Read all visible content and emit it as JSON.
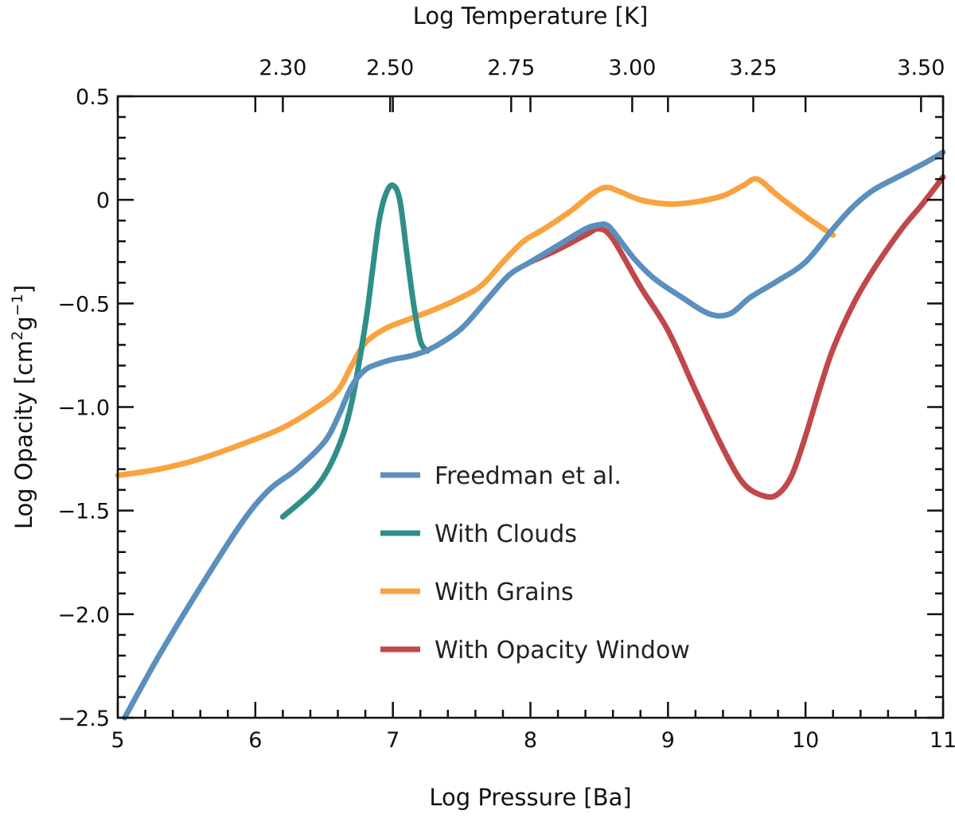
{
  "chart_data": {
    "type": "line",
    "xlabel": "Log Pressure [Ba]",
    "ylabel": "Log Opacity [cm²g⁻¹]",
    "ylabel_parts": {
      "main": "Log Opacity [cm",
      "sup1": "2",
      "mid": "g",
      "sup2": "−1",
      "end": "]"
    },
    "top_xlabel": "Log Temperature [K]",
    "xlim": [
      5,
      11
    ],
    "ylim": [
      -2.5,
      0.5
    ],
    "x_ticks": [
      5,
      6,
      7,
      8,
      9,
      10,
      11
    ],
    "x_tick_labels": [
      "5",
      "6",
      "7",
      "8",
      "9",
      "10",
      "11"
    ],
    "y_ticks": [
      0.5,
      0,
      -0.5,
      -1.0,
      -1.5,
      -2.0,
      -2.5
    ],
    "y_tick_labels": [
      "0.5",
      "0",
      "−0.5",
      "−1.0",
      "−1.5",
      "−2.0",
      "−2.5"
    ],
    "top_ticks": [
      {
        "pressure": 6.2,
        "label": "2.30"
      },
      {
        "pressure": 6.98,
        "label": "2.50"
      },
      {
        "pressure": 7.86,
        "label": "2.75"
      },
      {
        "pressure": 8.74,
        "label": "3.00"
      },
      {
        "pressure": 9.62,
        "label": "3.25"
      },
      {
        "pressure": 10.84,
        "label": "3.50"
      }
    ],
    "grid": false,
    "legend_position": "center",
    "series": [
      {
        "name": "With Grains",
        "color": "#f9a23e",
        "x": [
          5.0,
          5.3,
          5.6,
          5.9,
          6.2,
          6.45,
          6.6,
          6.7,
          6.8,
          6.95,
          7.1,
          7.3,
          7.5,
          7.65,
          7.8,
          7.95,
          8.1,
          8.3,
          8.45,
          8.55,
          8.65,
          8.8,
          9.0,
          9.2,
          9.4,
          9.55,
          9.65,
          9.8,
          10.0,
          10.2
        ],
        "y": [
          -1.33,
          -1.3,
          -1.25,
          -1.18,
          -1.1,
          -1.0,
          -0.92,
          -0.8,
          -0.69,
          -0.62,
          -0.58,
          -0.53,
          -0.47,
          -0.41,
          -0.3,
          -0.2,
          -0.14,
          -0.05,
          0.03,
          0.06,
          0.04,
          0.0,
          -0.02,
          -0.01,
          0.02,
          0.07,
          0.1,
          0.02,
          -0.08,
          -0.17
        ]
      },
      {
        "name": "With Opacity Window",
        "color": "#c0474a",
        "x": [
          8.0,
          8.2,
          8.4,
          8.5,
          8.6,
          8.8,
          9.0,
          9.2,
          9.4,
          9.55,
          9.7,
          9.8,
          9.9,
          10.0,
          10.1,
          10.2,
          10.35,
          10.5,
          10.7,
          10.85,
          11.0
        ],
        "y": [
          -0.3,
          -0.24,
          -0.17,
          -0.14,
          -0.19,
          -0.42,
          -0.63,
          -0.92,
          -1.2,
          -1.37,
          -1.43,
          -1.42,
          -1.33,
          -1.14,
          -0.92,
          -0.72,
          -0.5,
          -0.33,
          -0.14,
          -0.02,
          0.11
        ]
      },
      {
        "name": "With Clouds",
        "color": "#2f8f88",
        "x": [
          6.2,
          6.45,
          6.6,
          6.7,
          6.8,
          6.85,
          6.9,
          6.95,
          7.0,
          7.05,
          7.1,
          7.15,
          7.2,
          7.25
        ],
        "y": [
          -1.53,
          -1.38,
          -1.2,
          -0.98,
          -0.6,
          -0.35,
          -0.1,
          0.03,
          0.07,
          0.0,
          -0.25,
          -0.5,
          -0.68,
          -0.73
        ]
      },
      {
        "name": "Freedman et al.",
        "color": "#5b8fbd",
        "x": [
          5.05,
          5.3,
          5.6,
          5.9,
          6.1,
          6.3,
          6.5,
          6.6,
          6.7,
          6.8,
          6.9,
          7.0,
          7.15,
          7.3,
          7.5,
          7.7,
          7.85,
          8.0,
          8.2,
          8.4,
          8.5,
          8.55,
          8.6,
          8.75,
          8.9,
          9.1,
          9.3,
          9.45,
          9.6,
          9.8,
          10.0,
          10.2,
          10.35,
          10.5,
          10.7,
          10.9,
          11.0
        ],
        "y": [
          -2.5,
          -2.2,
          -1.87,
          -1.56,
          -1.4,
          -1.3,
          -1.17,
          -1.05,
          -0.9,
          -0.82,
          -0.79,
          -0.77,
          -0.75,
          -0.71,
          -0.62,
          -0.47,
          -0.36,
          -0.3,
          -0.22,
          -0.14,
          -0.12,
          -0.12,
          -0.15,
          -0.28,
          -0.38,
          -0.47,
          -0.55,
          -0.55,
          -0.47,
          -0.39,
          -0.3,
          -0.14,
          -0.03,
          0.05,
          0.12,
          0.19,
          0.23
        ]
      }
    ],
    "legend_order": [
      "Freedman et al.",
      "With Clouds",
      "With Grains",
      "With Opacity Window"
    ]
  }
}
